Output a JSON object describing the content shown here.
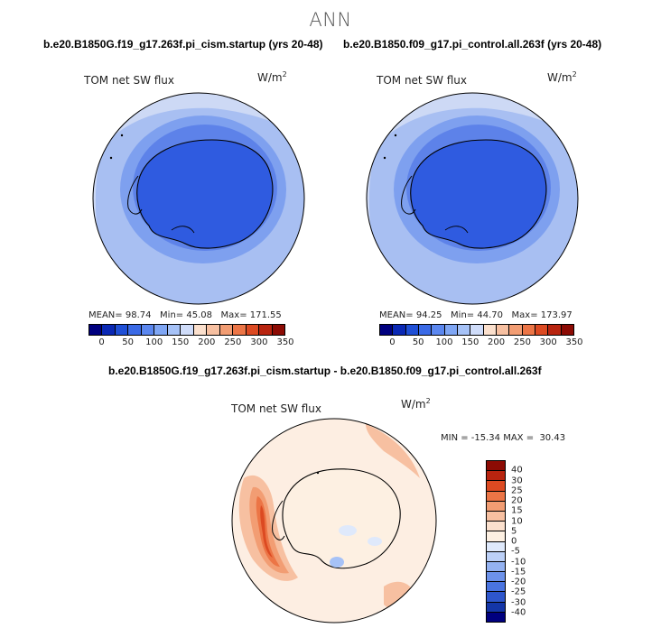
{
  "season": "ANN",
  "panels": {
    "left": {
      "case_title": "b.e20.B1850G.f19_g17.263f.pi_cism.startup (yrs 20-48)",
      "variable": "TOM net SW flux",
      "units_base": "W/m",
      "units_exp": "2",
      "mean_label": "MEAN=",
      "mean": "98.74",
      "min_label": "Min=",
      "min": "45.08",
      "max_label": "Max=",
      "max": "171.55"
    },
    "right": {
      "case_title": "b.e20.B1850.f09_g17.pi_control.all.263f (yrs 20-48)",
      "variable": "TOM net SW flux",
      "units_base": "W/m",
      "units_exp": "2",
      "mean_label": "MEAN=",
      "mean": "94.25",
      "min_label": "Min=",
      "min": "44.70",
      "max_label": "Max=",
      "max": "173.97"
    },
    "diff": {
      "case_title": "b.e20.B1850G.f19_g17.263f.pi_cism.startup - b.e20.B1850.f09_g17.pi_control.all.263f",
      "variable": "TOM net SW flux",
      "units_base": "W/m",
      "units_exp": "2",
      "minmax_text": "MIN = -15.34 MAX =  30.43"
    }
  },
  "abs_colorbar": {
    "colors": [
      "#00007f",
      "#0a28b4",
      "#1f4fd6",
      "#3a6ae6",
      "#5b87ef",
      "#7fa6f4",
      "#a6c2f7",
      "#cfdcf9",
      "#fbe0cd",
      "#f7c0a1",
      "#f29d73",
      "#ec7546",
      "#dc4a22",
      "#b8240f",
      "#8c0b04"
    ],
    "ticks": [
      "0",
      "50",
      "100",
      "150",
      "200",
      "250",
      "300",
      "350"
    ]
  },
  "diff_colorbar": {
    "colors": [
      "#8c0b04",
      "#b8240f",
      "#dc4a22",
      "#ec7546",
      "#f29d73",
      "#f7c0a1",
      "#fbe0cd",
      "#fdf0e2",
      "#dfe9fb",
      "#bcd0f7",
      "#94b2f1",
      "#6d92ea",
      "#4a74e0",
      "#2e56cc",
      "#1436a8",
      "#00007f"
    ],
    "ticks": [
      "40",
      "30",
      "25",
      "20",
      "15",
      "10",
      "5",
      "0",
      "-5",
      "-10",
      "-15",
      "-20",
      "-25",
      "-30",
      "-40"
    ]
  },
  "map_colors": {
    "ocean_outer": "#cdd9f5",
    "ocean_mid": "#a8bff2",
    "ocean_inner": "#7ea0ef",
    "ring_dark": "#5d82e9",
    "land": "#2f5be0",
    "land_inner": "#2952d8",
    "diff_bg": "#fdeee2",
    "diff_warm1": "#f7c0a1",
    "diff_warm2": "#f29d73",
    "diff_warm3": "#ec7546",
    "diff_warm4": "#dc4a22",
    "diff_cool1": "#dfe9fb",
    "diff_cool2": "#a6c2f7"
  }
}
